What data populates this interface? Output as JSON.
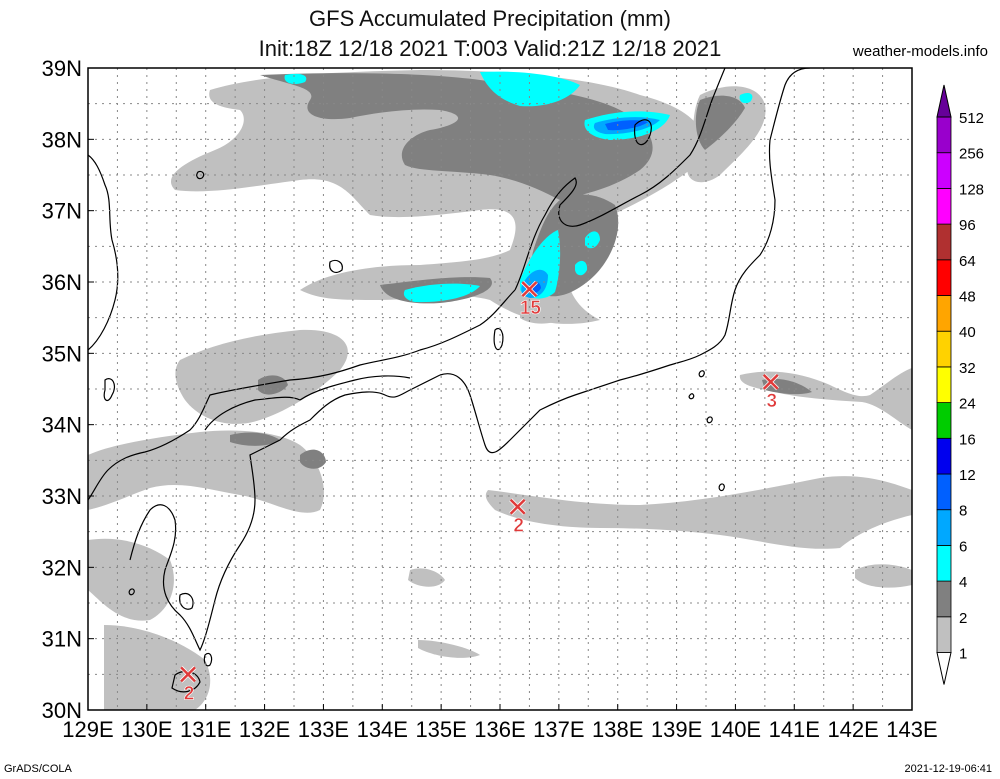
{
  "title": "GFS Accumulated Precipitation (mm)",
  "subtitle": "Init:18Z 12/18 2021 T:003 Valid:21Z 12/18 2021",
  "site": "weather-models.info",
  "credit": "GrADS/COLA",
  "timestamp": "2021-12-19-06:41",
  "map": {
    "lon_range": [
      129,
      143
    ],
    "lat_range": [
      30,
      39
    ],
    "x_ticks": [
      "129E",
      "130E",
      "131E",
      "132E",
      "133E",
      "134E",
      "135E",
      "136E",
      "137E",
      "138E",
      "139E",
      "140E",
      "141E",
      "142E",
      "143E"
    ],
    "y_ticks": [
      "30N",
      "31N",
      "32N",
      "33N",
      "34N",
      "35N",
      "36N",
      "37N",
      "38N",
      "39N"
    ],
    "grid": true
  },
  "colorbar": {
    "levels": [
      "1",
      "2",
      "4",
      "6",
      "8",
      "12",
      "16",
      "24",
      "32",
      "40",
      "48",
      "64",
      "96",
      "128",
      "256",
      "512"
    ],
    "colors": [
      "#c0c0c0",
      "#808080",
      "#00ffff",
      "#00a8ff",
      "#0060ff",
      "#0000ee",
      "#00cc00",
      "#ffff00",
      "#ffd200",
      "#ffa500",
      "#ff0000",
      "#b03030",
      "#ff00ff",
      "#cc00ff",
      "#9900cc",
      "#660099"
    ]
  },
  "markers": [
    {
      "lon": 136.5,
      "lat": 35.9,
      "value": "15"
    },
    {
      "lon": 136.3,
      "lat": 32.85,
      "value": "2"
    },
    {
      "lon": 140.6,
      "lat": 34.6,
      "value": "3"
    },
    {
      "lon": 130.7,
      "lat": 30.5,
      "value": "2"
    }
  ]
}
